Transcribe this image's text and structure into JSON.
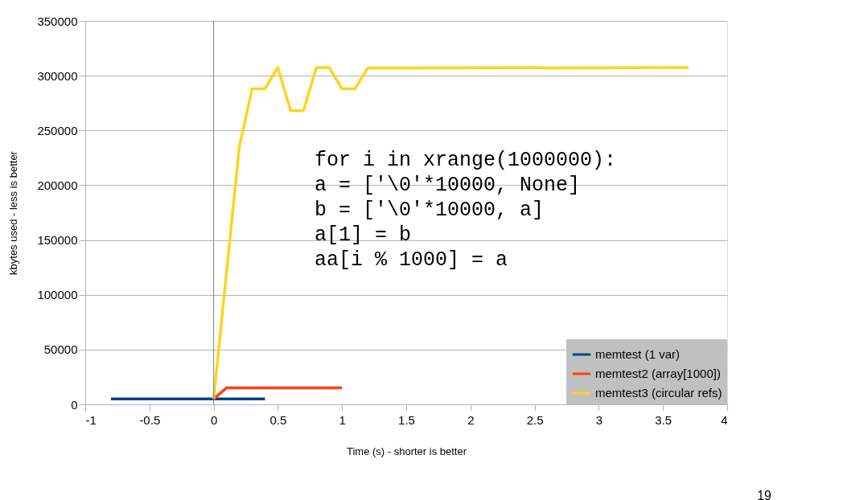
{
  "chart_data": {
    "type": "line",
    "xlabel": "Time (s) - shorter is better",
    "ylabel": "kbytes used - less is better",
    "xlim": [
      -1,
      4
    ],
    "xticks": [
      -1,
      -0.5,
      0,
      0.5,
      1,
      1.5,
      2,
      2.5,
      3,
      3.5,
      4
    ],
    "ylim": [
      0,
      350000
    ],
    "yticks": [
      0,
      50000,
      100000,
      150000,
      200000,
      250000,
      300000,
      350000
    ],
    "grid": "y",
    "legend": "bottom right",
    "line_style": "solid",
    "marker": "none",
    "ref_lines": [
      {
        "axis": "x",
        "value": 0,
        "color": "#808080"
      }
    ],
    "annotations": [
      "for i in xrange(1000000):\n  a = ['\\0'*10000, None]\n  b = ['\\0'*10000, a]\n  a[1] = b\n  aa[i % 1000] = a",
      "19"
    ],
    "series": [
      {
        "name": "memtest (1 var)",
        "color": "#004586",
        "x": [
          -0.8,
          0,
          0.4
        ],
        "values": [
          5000,
          5000,
          5000
        ]
      },
      {
        "name": "memtest2 (array[1000])",
        "color": "#ff420e",
        "x": [
          0,
          0.1,
          1.0
        ],
        "values": [
          5000,
          15000,
          15000
        ]
      },
      {
        "name": "memtest3 (circular refs)",
        "color": "#ffd320",
        "x": [
          0,
          0.2,
          0.3,
          0.4,
          0.5,
          0.6,
          0.7,
          0.8,
          0.9,
          1.0,
          1.1,
          1.2,
          2.5,
          2.6,
          3.7
        ],
        "values": [
          5000,
          235000,
          288000,
          288000,
          307500,
          268000,
          268000,
          307500,
          307500,
          288000,
          288000,
          307000,
          307500,
          307000,
          307500
        ]
      }
    ]
  }
}
